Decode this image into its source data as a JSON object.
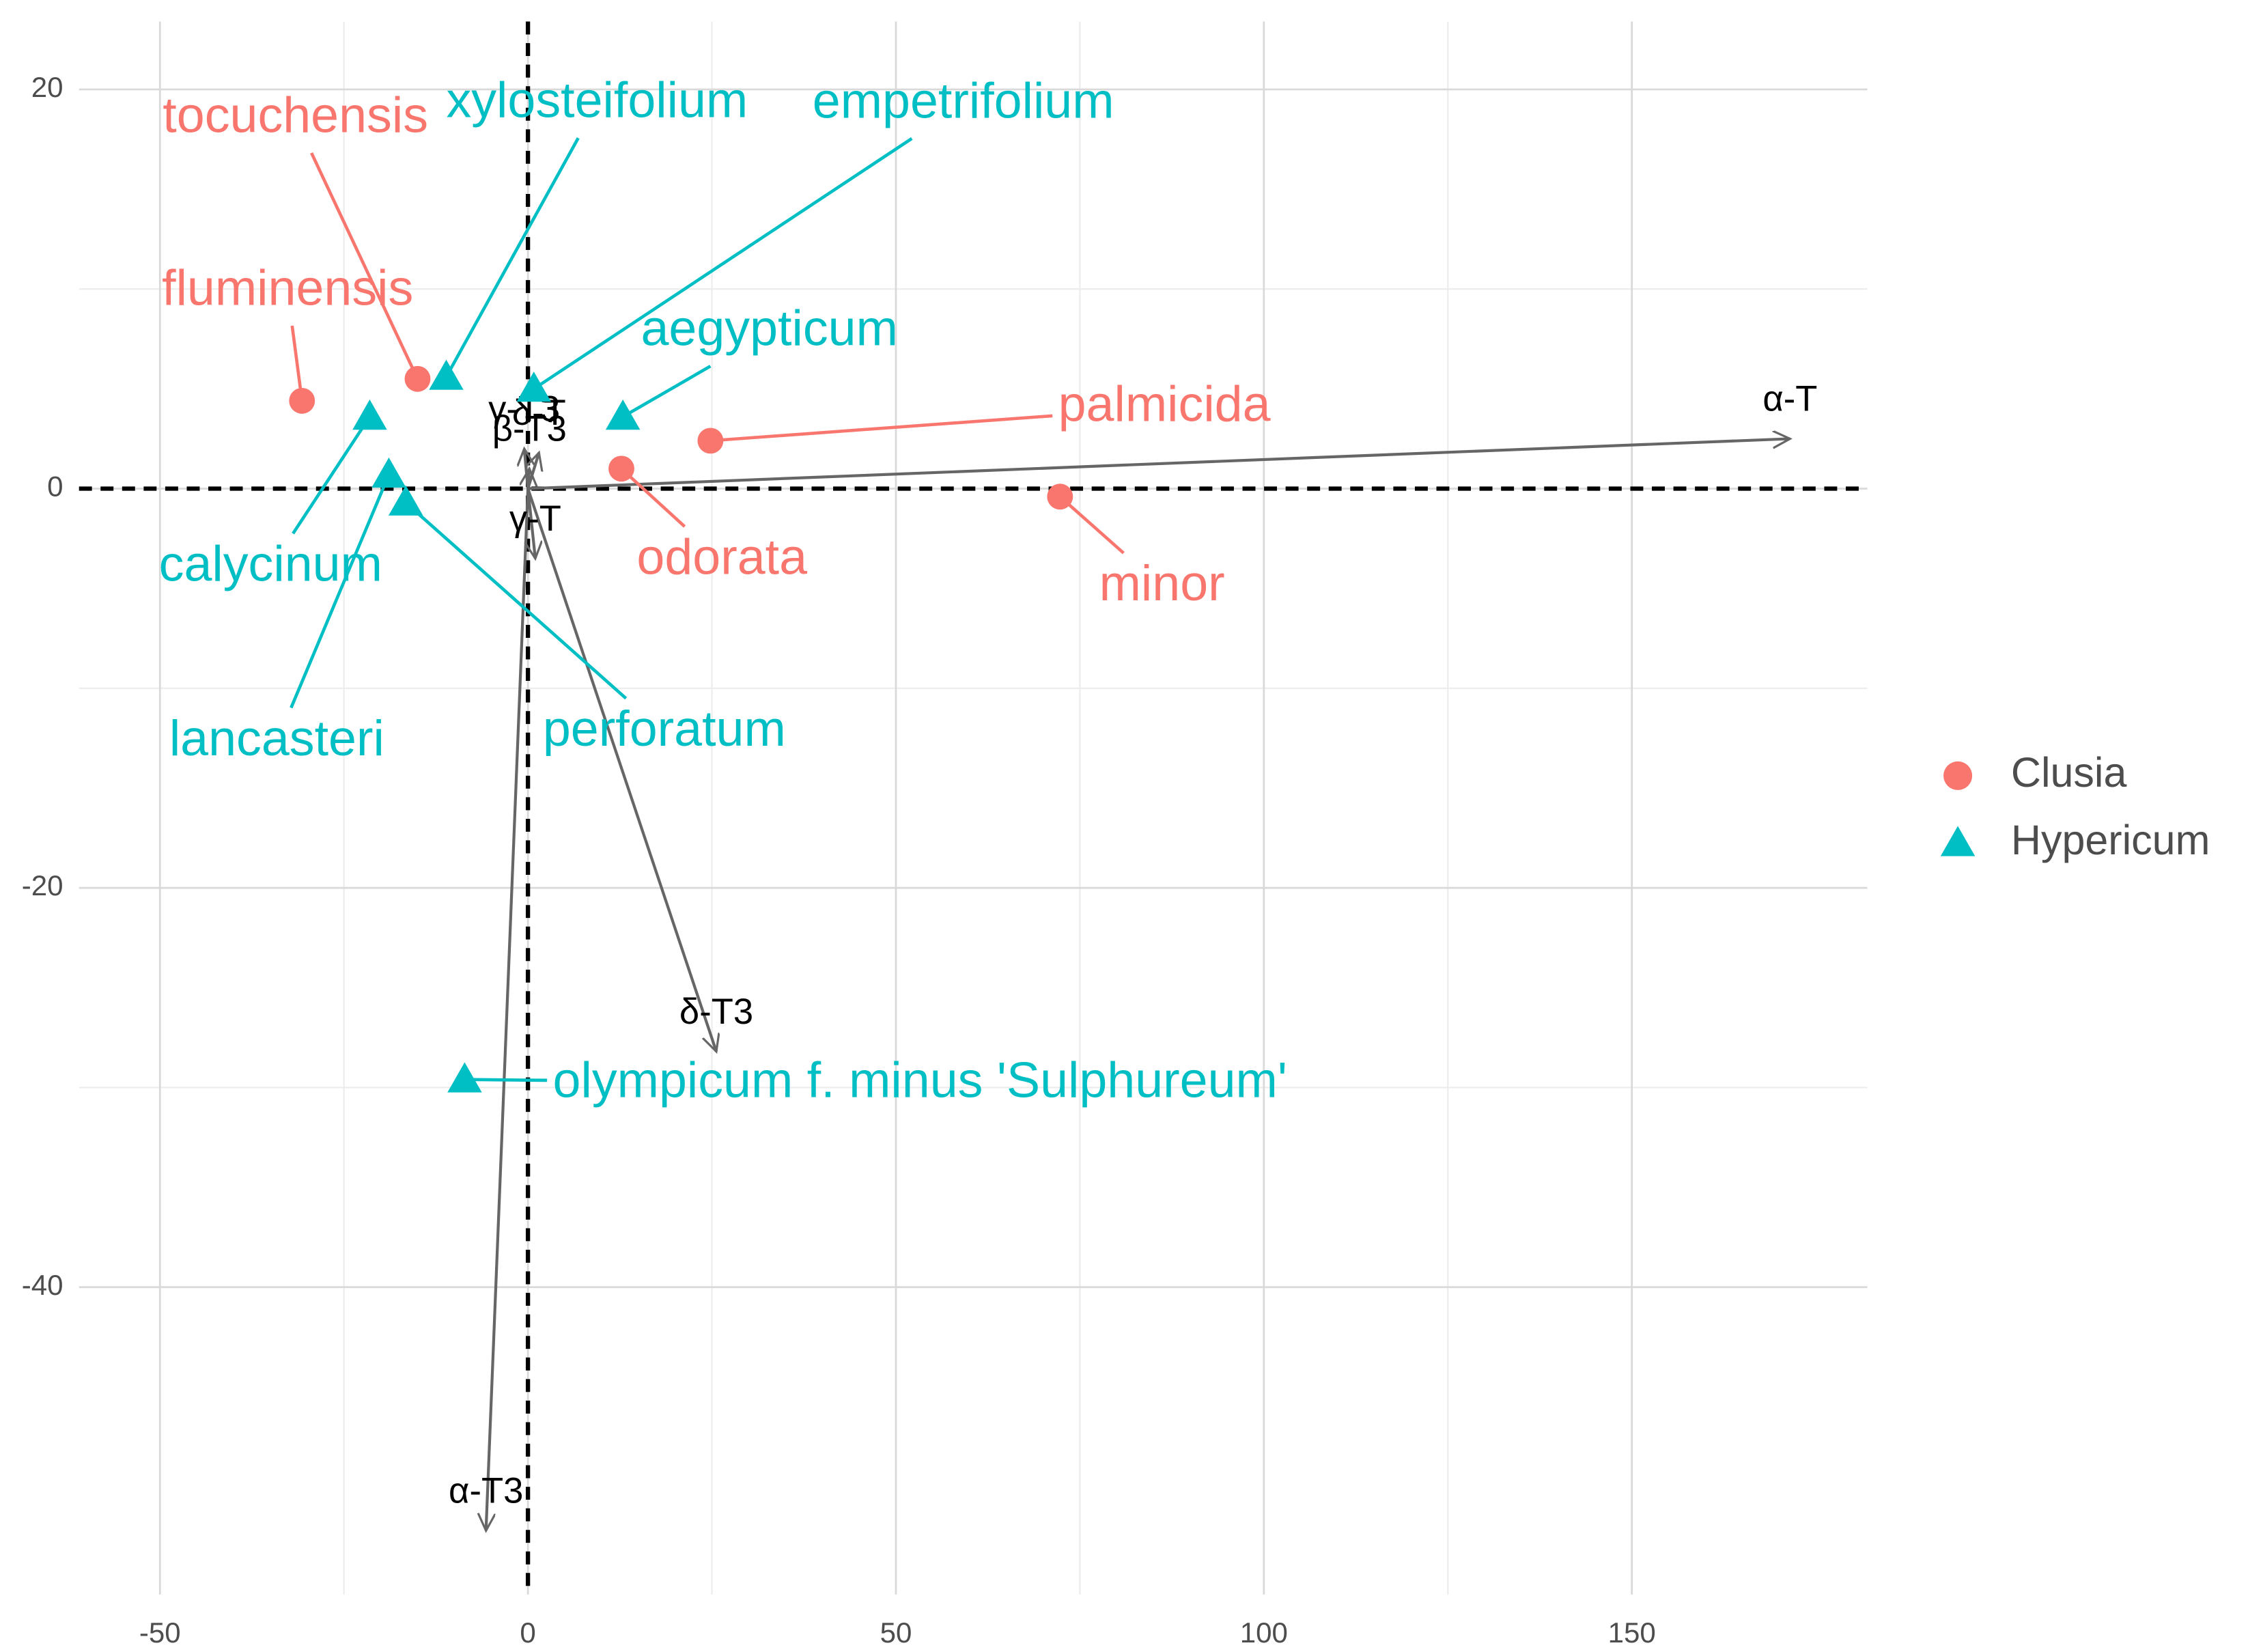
{
  "chart_data": {
    "type": "biplot",
    "xlim": [
      -61,
      182
    ],
    "ylim": [
      -55.4,
      23.4
    ],
    "xticks": [
      -50,
      0,
      50,
      100,
      150
    ],
    "yticks": [
      -40,
      -20,
      0,
      20
    ],
    "grid": true,
    "legend": "right",
    "reference_lines": {
      "x": 0,
      "y": 0
    },
    "series": [
      {
        "name": "Clusia",
        "color": "#f8766d",
        "shape": "circle",
        "labels": [
          "fluminensis",
          "tocuchensis",
          "odorata",
          "palmicida",
          "minor"
        ],
        "x": [
          -30.7,
          -15.0,
          12.7,
          24.8,
          72.3
        ],
        "values": [
          4.4,
          5.5,
          1.0,
          2.4,
          -0.4
        ]
      },
      {
        "name": "Hypericum",
        "color": "#00bfc4",
        "shape": "triangle",
        "labels": [
          "xylosteifolium",
          "empetrifolium",
          "aegypticum",
          "calycinum",
          "lancasteri",
          "perforatum",
          "olympicum f. minus 'Sulphureum'"
        ],
        "x": [
          -11.1,
          0.8,
          12.9,
          -21.5,
          -18.9,
          -16.6,
          -8.6
        ],
        "values": [
          5.6,
          5.0,
          3.6,
          3.6,
          0.7,
          -0.7,
          -29.6
        ]
      }
    ],
    "loadings": {
      "color": "#666666",
      "labels": [
        "α-T",
        "α-T3",
        "δ-T3",
        "γ-T",
        "γ-T3",
        "δ-T",
        "β-T3"
      ],
      "x": [
        171.5,
        -5.7,
        25.6,
        1.0,
        -0.5,
        1.5,
        0.2
      ],
      "y": [
        2.5,
        -52.2,
        -28.2,
        -3.5,
        2.0,
        1.8,
        1.0
      ]
    }
  }
}
